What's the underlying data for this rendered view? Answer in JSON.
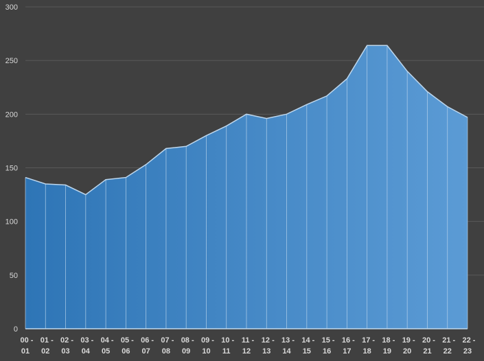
{
  "chart_data": {
    "type": "area",
    "title": "",
    "xlabel": "",
    "ylabel": "",
    "ylim": [
      0,
      300
    ],
    "yticks": [
      0,
      50,
      100,
      150,
      200,
      250,
      300
    ],
    "grid": true,
    "legend": "none",
    "categories": [
      [
        "00 -",
        "01"
      ],
      [
        "01 -",
        "02"
      ],
      [
        "02 -",
        "03"
      ],
      [
        "03 -",
        "04"
      ],
      [
        "04 -",
        "05"
      ],
      [
        "05 -",
        "06"
      ],
      [
        "06 -",
        "07"
      ],
      [
        "07 -",
        "08"
      ],
      [
        "08 -",
        "09"
      ],
      [
        "09 -",
        "10"
      ],
      [
        "10 -",
        "11"
      ],
      [
        "11 -",
        "12"
      ],
      [
        "12 -",
        "13"
      ],
      [
        "13 -",
        "14"
      ],
      [
        "14 -",
        "15"
      ],
      [
        "15 -",
        "16"
      ],
      [
        "16 -",
        "17"
      ],
      [
        "17 -",
        "18"
      ],
      [
        "18 -",
        "19"
      ],
      [
        "19 -",
        "20"
      ],
      [
        "20 -",
        "21"
      ],
      [
        "21 -",
        "22"
      ],
      [
        "22 -",
        "23"
      ]
    ],
    "values": [
      141,
      135,
      134,
      125,
      139,
      141,
      153,
      168,
      170,
      180,
      189,
      200,
      196,
      200,
      209,
      217,
      233,
      264,
      264,
      240,
      221,
      207,
      197
    ],
    "colors": {
      "background": "#404040",
      "grid": "#595959",
      "fill_start": "#2e75b6",
      "fill_end": "#5b9bd5",
      "line": "#bdd7ee"
    }
  }
}
